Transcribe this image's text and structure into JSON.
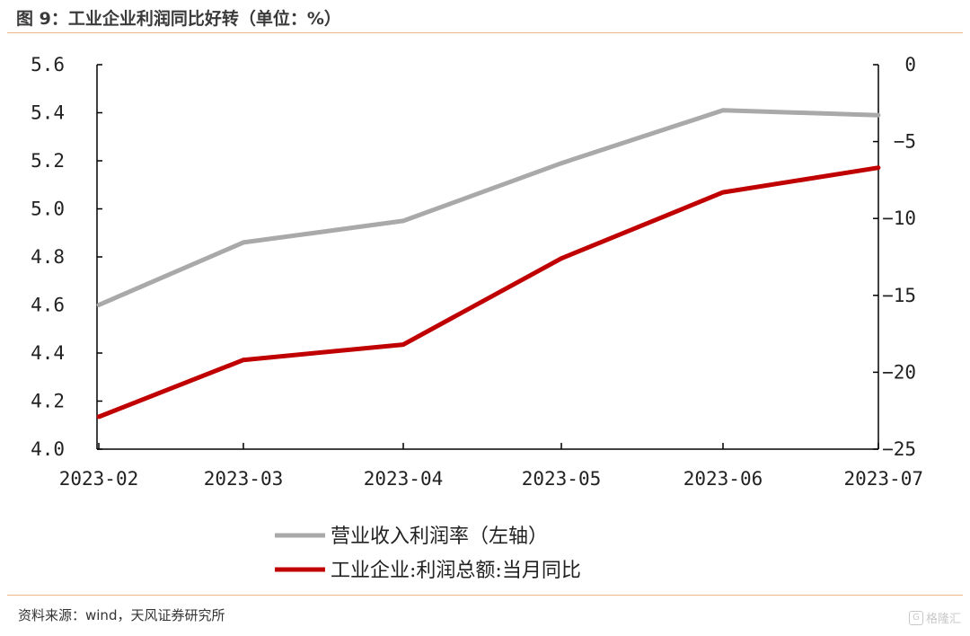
{
  "title": "图 9：工业企业利润同比好转（单位：%）",
  "source": "资料来源：wind，天风证券研究所",
  "watermark": {
    "icon": "gelonghui-logo-icon",
    "text": "格隆汇"
  },
  "colors": {
    "series_gray": "#a9a9a9",
    "series_red": "#c00000",
    "rule": "#f0b888",
    "axis": "#000000"
  },
  "chart_data": {
    "type": "line",
    "title": "",
    "categories": [
      "2023-02",
      "2023-03",
      "2023-04",
      "2023-05",
      "2023-06",
      "2023-07"
    ],
    "y_left": {
      "lim": [
        4.0,
        5.6
      ],
      "ticks": [
        "5.6",
        "5.4",
        "5.2",
        "5.0",
        "4.8",
        "4.6",
        "4.4",
        "4.2",
        "4.0"
      ]
    },
    "y_right": {
      "lim": [
        -25,
        0
      ],
      "ticks": [
        "0",
        "−5",
        "−10",
        "−15",
        "−20",
        "−25"
      ]
    },
    "grid": false,
    "legend_position": "bottom-center",
    "series": [
      {
        "name": "营业收入利润率（左轴）",
        "axis": "left",
        "color": "#a9a9a9",
        "values": [
          4.6,
          4.86,
          4.95,
          5.19,
          5.41,
          5.39
        ]
      },
      {
        "name": "工业企业:利润总额:当月同比",
        "axis": "right",
        "color": "#c00000",
        "values": [
          -22.9,
          -19.2,
          -18.2,
          -12.6,
          -8.3,
          -6.7
        ]
      }
    ]
  }
}
